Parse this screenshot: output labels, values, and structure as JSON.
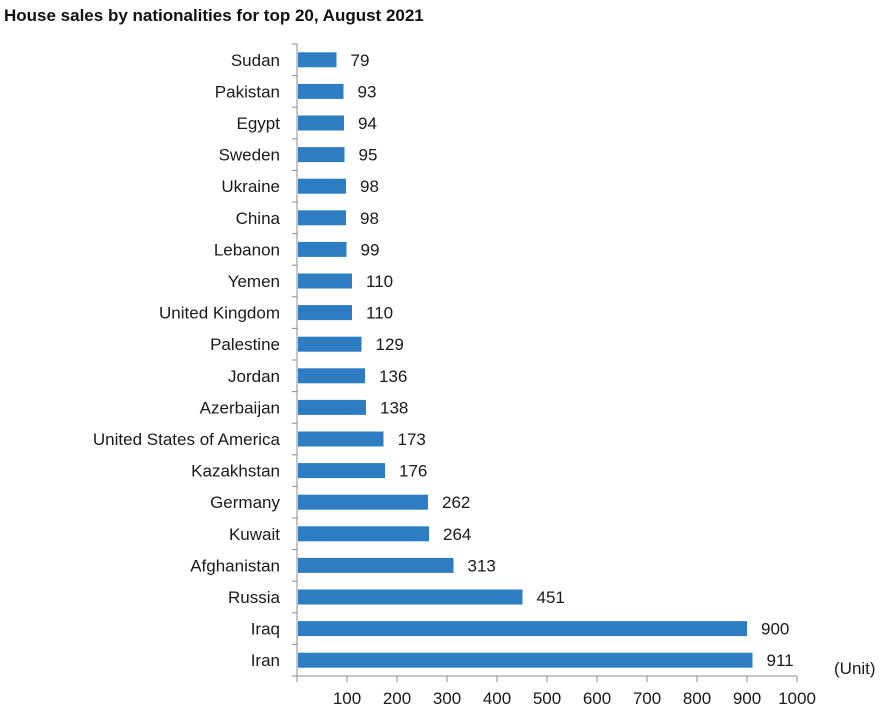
{
  "chart_data": {
    "type": "bar",
    "orientation": "horizontal",
    "title": "House sales by nationalities for top 20, August 2021",
    "unit_label": "(Unit)",
    "categories": [
      "Sudan",
      "Pakistan",
      "Egypt",
      "Sweden",
      "Ukraine",
      "China",
      "Lebanon",
      "Yemen",
      "United Kingdom",
      "Palestine",
      "Jordan",
      "Azerbaijan",
      "United States of America",
      "Kazakhstan",
      "Germany",
      "Kuwait",
      "Afghanistan",
      "Russia",
      "Iraq",
      "Iran"
    ],
    "values": [
      79,
      93,
      94,
      95,
      98,
      98,
      99,
      110,
      110,
      129,
      136,
      138,
      173,
      176,
      262,
      264,
      313,
      451,
      900,
      911
    ],
    "xlim": [
      0,
      1000
    ],
    "xticks": [
      100,
      200,
      300,
      400,
      500,
      600,
      700,
      800,
      900,
      1000
    ],
    "grid": false,
    "legend": "none",
    "bar_color": "#2e7dc3",
    "data_labels": true
  }
}
